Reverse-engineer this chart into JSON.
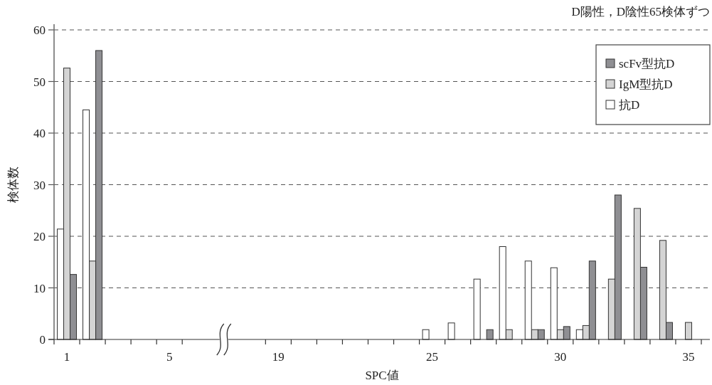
{
  "chart_data": {
    "type": "bar",
    "xlabel": "SPC値",
    "ylabel": "検体数",
    "annotations": [
      "D陽性，D陰性65検体ずつ"
    ],
    "categories": [
      "1",
      null,
      null,
      null,
      "5",
      "19",
      null,
      null,
      null,
      null,
      null,
      "25",
      null,
      null,
      null,
      null,
      "30",
      null,
      null,
      null,
      null,
      "35"
    ],
    "series": [
      {
        "name": "scFv型抗D",
        "color": "#8f8f93",
        "values": [
          12.6,
          56.0,
          0,
          0,
          0,
          0,
          0,
          0,
          0,
          0,
          0,
          0,
          0,
          1.9,
          0,
          1.9,
          2.5,
          15.2,
          28.0,
          14.0,
          3.3,
          0
        ]
      },
      {
        "name": "IgM型抗D",
        "color": "#d4d4d4",
        "values": [
          52.6,
          15.2,
          0,
          0,
          0,
          0,
          0,
          0,
          0,
          0,
          0,
          0,
          0,
          0,
          1.9,
          1.9,
          1.9,
          2.7,
          11.7,
          25.4,
          19.2,
          3.3
        ]
      },
      {
        "name": "抗D",
        "color": "#ffffff",
        "values": [
          21.4,
          44.5,
          0,
          0,
          0,
          0,
          0,
          0,
          0,
          0,
          0,
          1.9,
          3.2,
          11.7,
          18.0,
          15.2,
          13.9,
          1.9,
          0,
          0,
          0,
          0
        ]
      }
    ],
    "ylim": [
      0,
      60
    ],
    "yticks": [
      0,
      10,
      20,
      30,
      40,
      50,
      60
    ],
    "grid": "y",
    "legend": "top right"
  }
}
